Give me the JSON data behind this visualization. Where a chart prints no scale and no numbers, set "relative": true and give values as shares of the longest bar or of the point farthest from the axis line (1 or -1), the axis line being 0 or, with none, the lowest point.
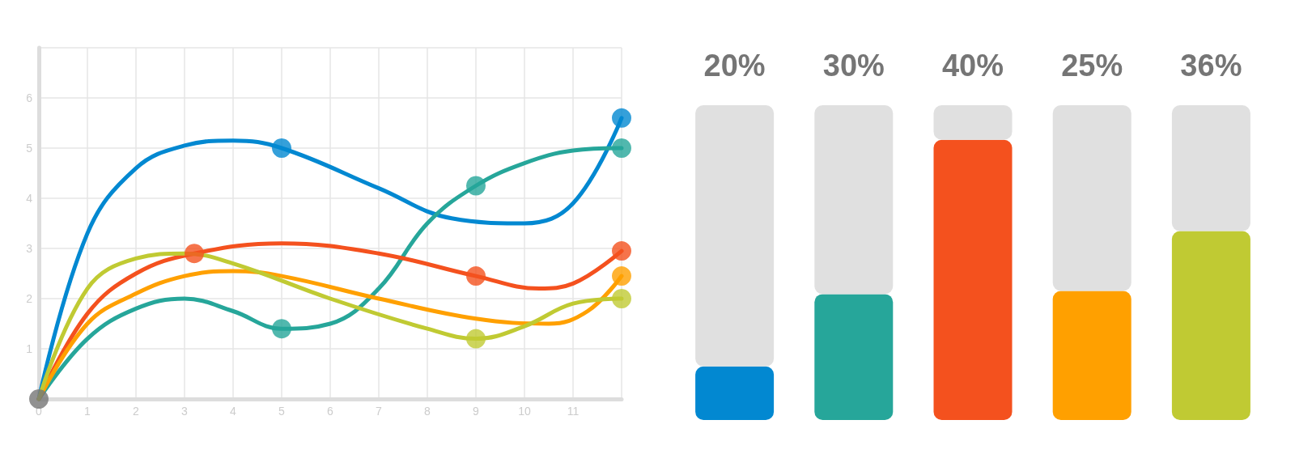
{
  "chart_data": [
    {
      "type": "line",
      "xlim": [
        0,
        12
      ],
      "ylim": [
        0,
        7
      ],
      "xticks": [
        0,
        1,
        2,
        3,
        4,
        5,
        6,
        7,
        8,
        9,
        10,
        11,
        {
          "value": 12,
          "label": null
        }
      ],
      "yticks": [
        {
          "value": 0,
          "label": null
        },
        1,
        2,
        3,
        4,
        5,
        6,
        {
          "value": 7,
          "label": null
        }
      ],
      "grid": true,
      "marker": "none",
      "line_style": "solid",
      "series": [
        {
          "color": "#0288d1",
          "x": [
            0,
            1,
            2,
            3,
            4,
            5,
            7,
            8.5,
            10,
            11,
            12
          ],
          "values": [
            0,
            3.3,
            4.6,
            5.05,
            5.15,
            5,
            4.2,
            3.6,
            3.5,
            3.9,
            5.6
          ]
        },
        {
          "color": "#26a69a",
          "x": [
            0,
            1,
            2,
            3,
            4,
            5,
            6,
            7,
            8,
            9,
            10,
            11,
            12
          ],
          "values": [
            0,
            1.2,
            1.8,
            2,
            1.75,
            1.4,
            1.5,
            2.2,
            3.5,
            4.25,
            4.7,
            4.95,
            5
          ]
        },
        {
          "color": "#f4511e",
          "x": [
            0,
            1,
            2,
            3.2,
            5,
            7,
            9,
            10.3,
            11,
            12
          ],
          "values": [
            0,
            1.7,
            2.5,
            2.9,
            3.1,
            2.9,
            2.45,
            2.2,
            2.3,
            2.95
          ]
        },
        {
          "color": "#ffa000",
          "x": [
            0,
            1,
            2,
            3,
            4,
            5,
            7,
            9,
            10.5,
            11.3,
            12
          ],
          "values": [
            0,
            1.5,
            2.1,
            2.45,
            2.55,
            2.45,
            2,
            1.6,
            1.5,
            1.75,
            2.45
          ]
        },
        {
          "color": "#c0ca33",
          "x": [
            0,
            1,
            2,
            3,
            4,
            6,
            8,
            9,
            10,
            11,
            12
          ],
          "values": [
            0,
            2.2,
            2.8,
            2.9,
            2.7,
            2,
            1.4,
            1.2,
            1.45,
            1.9,
            2
          ]
        },
        {
          "type": "scatter",
          "marker": "circle",
          "color": "#0288d1",
          "x": [
            5,
            12
          ],
          "values": [
            5,
            5.6
          ]
        },
        {
          "type": "scatter",
          "marker": "circle",
          "color": "#26a69a",
          "x": [
            5,
            9,
            12
          ],
          "values": [
            1.4,
            4.25,
            5
          ]
        },
        {
          "type": "scatter",
          "marker": "circle",
          "color": "#f4511e",
          "x": [
            3.2,
            9,
            12
          ],
          "values": [
            2.9,
            2.45,
            2.95
          ]
        },
        {
          "type": "scatter",
          "marker": "circle",
          "color": "#ffa000",
          "x": [
            12
          ],
          "values": [
            2.45
          ]
        },
        {
          "type": "scatter",
          "marker": "circle",
          "color": "#c0ca33",
          "x": [
            9,
            12
          ],
          "values": [
            1.2,
            2
          ]
        },
        {
          "type": "scatter",
          "marker": "circle",
          "color": "#757575",
          "x": [
            0
          ],
          "values": [
            0
          ]
        }
      ]
    },
    {
      "type": "bar",
      "relative": true,
      "stacked": true,
      "categories": [
        "20%",
        "30%",
        "40%",
        "25%",
        "36%"
      ],
      "series": [
        {
          "colors": [
            "#0288d1",
            "#26a69a",
            "#f4511e",
            "#ffa000",
            "#c0ca33"
          ],
          "values": [
            0.17,
            0.4,
            0.89,
            0.41,
            0.6
          ]
        },
        {
          "color": "#e0e0e0",
          "values": [
            0.83,
            0.6,
            0.11,
            0.59,
            0.4
          ]
        }
      ]
    }
  ]
}
